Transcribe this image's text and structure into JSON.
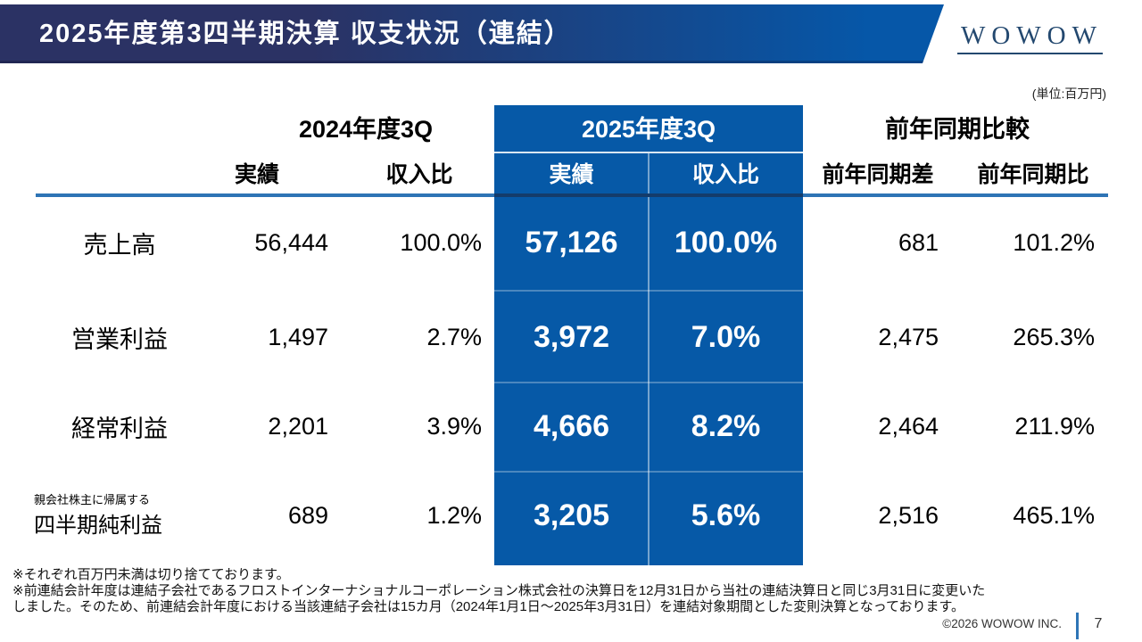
{
  "slide": {
    "title": "2025年度第3四半期決算 収支状況（連結）",
    "logo_text": "WOWOW",
    "unit_note": "(単位:百万円)",
    "copyright": "©2026 WOWOW INC.",
    "page_number": "7"
  },
  "table": {
    "header": {
      "prev": {
        "label": "2024年度3Q",
        "actual": "実績",
        "ratio": "収入比"
      },
      "cur": {
        "label": "2025年度3Q",
        "actual": "実績",
        "ratio": "収入比"
      },
      "yoy": {
        "label": "前年同期比較",
        "diff": "前年同期差",
        "ratio": "前年同期比"
      }
    },
    "rows": [
      {
        "label": "売上高",
        "note": "",
        "prev_actual": "56,444",
        "prev_ratio": "100.0%",
        "cur_actual": "57,126",
        "cur_ratio": "100.0%",
        "yoy_diff": "681",
        "yoy_ratio": "101.2%"
      },
      {
        "label": "営業利益",
        "note": "",
        "prev_actual": "1,497",
        "prev_ratio": "2.7%",
        "cur_actual": "3,972",
        "cur_ratio": "7.0%",
        "yoy_diff": "2,475",
        "yoy_ratio": "265.3%"
      },
      {
        "label": "経常利益",
        "note": "",
        "prev_actual": "2,201",
        "prev_ratio": "3.9%",
        "cur_actual": "4,666",
        "cur_ratio": "8.2%",
        "yoy_diff": "2,464",
        "yoy_ratio": "211.9%"
      },
      {
        "label": "四半期純利益",
        "note": "親会社株主に帰属する",
        "prev_actual": "689",
        "prev_ratio": "1.2%",
        "cur_actual": "3,205",
        "cur_ratio": "5.6%",
        "yoy_diff": "2,516",
        "yoy_ratio": "465.1%"
      }
    ]
  },
  "footnotes": [
    "※それぞれ百万円未満は切り捨てております。",
    "※前連結会計年度は連結子会社であるフロストインターナショナルコーポレーション株式会社の決算日を12月31日から当社の連結決算日と同じ3月31日に変更いた",
    "しました。そのため、前連結会計年度における当該連結子会社は15カ月（2024年1月1日～2025年3月31日）を連結対象期間とした変則決算となっております。"
  ],
  "colors": {
    "banner_left": "#2b3264",
    "banner_right": "#0657a8",
    "highlight_blue": "#0659a7",
    "rule_blue": "#2e74b5",
    "logo_navy": "#23486f",
    "page_bar_blue": "#2e75b6"
  }
}
